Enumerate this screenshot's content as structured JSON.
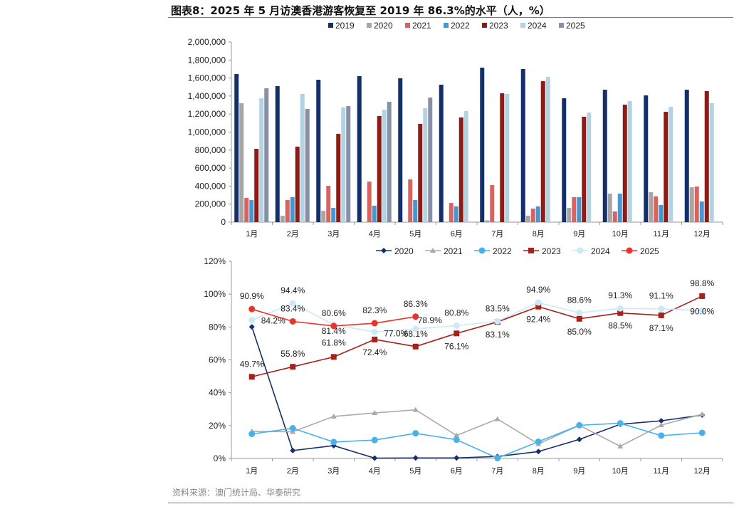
{
  "title": "图表8：2025 年 5 月访澳香港游客恢复至 2019 年 86.3%的水平（人，%）",
  "source": "资料来源：澳门统计局、华泰研究",
  "chart_data": [
    {
      "type": "bar",
      "title": "",
      "categories": [
        "1月",
        "2月",
        "3月",
        "4月",
        "5月",
        "6月",
        "7月",
        "8月",
        "9月",
        "10月",
        "11月",
        "12月"
      ],
      "ylim": [
        0,
        2000000
      ],
      "yticks": [
        "0",
        "200,000",
        "400,000",
        "600,000",
        "800,000",
        "1,000,000",
        "1,200,000",
        "1,400,000",
        "1,600,000",
        "1,800,000",
        "2,000,000"
      ],
      "legend_position": "top",
      "series": [
        {
          "name": "2019",
          "color": "#13306b",
          "values": [
            1644000,
            1510000,
            1581000,
            1621000,
            1597000,
            1526000,
            1715000,
            1700000,
            1375000,
            1470000,
            1407000,
            1470000
          ]
        },
        {
          "name": "2020",
          "color": "#a6a6a6",
          "values": [
            1320000,
            71000,
            126000,
            2000,
            3000,
            3000,
            20000,
            71000,
            158000,
            316000,
            332000,
            387000
          ]
        },
        {
          "name": "2021",
          "color": "#d9635f",
          "values": [
            269000,
            245000,
            403000,
            450000,
            474000,
            213000,
            411000,
            150000,
            277000,
            118000,
            285000,
            395000
          ]
        },
        {
          "name": "2022",
          "color": "#4596d1",
          "values": [
            245000,
            277000,
            158000,
            182000,
            245000,
            174000,
            3000,
            174000,
            277000,
            316000,
            190000,
            229000
          ]
        },
        {
          "name": "2023",
          "color": "#8e1c16",
          "values": [
            814000,
            838000,
            980000,
            1178000,
            1091000,
            1162000,
            1431000,
            1565000,
            1170000,
            1304000,
            1225000,
            1455000
          ]
        },
        {
          "name": "2024",
          "color": "#b3d3e3",
          "values": [
            1375000,
            1423000,
            1273000,
            1249000,
            1265000,
            1233000,
            1423000,
            1613000,
            1217000,
            1344000,
            1281000,
            1320000
          ]
        },
        {
          "name": "2025",
          "color": "#8890a8",
          "values": [
            1486000,
            1257000,
            1289000,
            1336000,
            1383000,
            null,
            null,
            null,
            null,
            null,
            null,
            null
          ]
        }
      ]
    },
    {
      "type": "line",
      "title": "",
      "categories": [
        "1月",
        "2月",
        "3月",
        "4月",
        "5月",
        "6月",
        "7月",
        "8月",
        "9月",
        "10月",
        "11月",
        "12月"
      ],
      "ylim": [
        0,
        120
      ],
      "yticks": [
        "0%",
        "20%",
        "40%",
        "60%",
        "80%",
        "100%",
        "120%"
      ],
      "legend_position": "top",
      "series": [
        {
          "name": "2020",
          "color": "#13306b",
          "marker": "diamond",
          "labeled": false,
          "values": [
            80.1,
            4.8,
            7.8,
            0.2,
            0.3,
            0.3,
            1.2,
            4.2,
            11.6,
            20.8,
            22.9,
            26.4
          ]
        },
        {
          "name": "2021",
          "color": "#aaaaaa",
          "marker": "triangle",
          "labeled": false,
          "values": [
            16.5,
            16.2,
            25.6,
            27.7,
            29.6,
            14.0,
            24.0,
            8.8,
            20.2,
            7.4,
            20.3,
            26.9
          ]
        },
        {
          "name": "2022",
          "color": "#4ab0ec",
          "marker": "circle",
          "labeled": false,
          "values": [
            14.9,
            18.4,
            10.0,
            11.2,
            15.3,
            11.4,
            0.2,
            10.2,
            20.2,
            21.4,
            13.9,
            15.6
          ]
        },
        {
          "name": "2023",
          "color": "#a8201a",
          "marker": "square",
          "labeled": true,
          "values": [
            49.7,
            55.8,
            61.8,
            72.4,
            68.1,
            76.1,
            83.1,
            92.4,
            85.0,
            88.5,
            87.1,
            98.8
          ]
        },
        {
          "name": "2024",
          "color": "#cce9f8",
          "marker": "circle",
          "labeled": true,
          "values": [
            84.2,
            94.4,
            81.4,
            77.0,
            78.9,
            80.8,
            83.5,
            94.9,
            88.6,
            91.3,
            91.1,
            90.0
          ]
        },
        {
          "name": "2025",
          "color": "#e8342a",
          "marker": "circle",
          "labeled": true,
          "values": [
            90.9,
            83.4,
            80.6,
            82.3,
            86.3,
            null,
            null,
            null,
            null,
            null,
            null,
            null
          ]
        }
      ]
    }
  ]
}
